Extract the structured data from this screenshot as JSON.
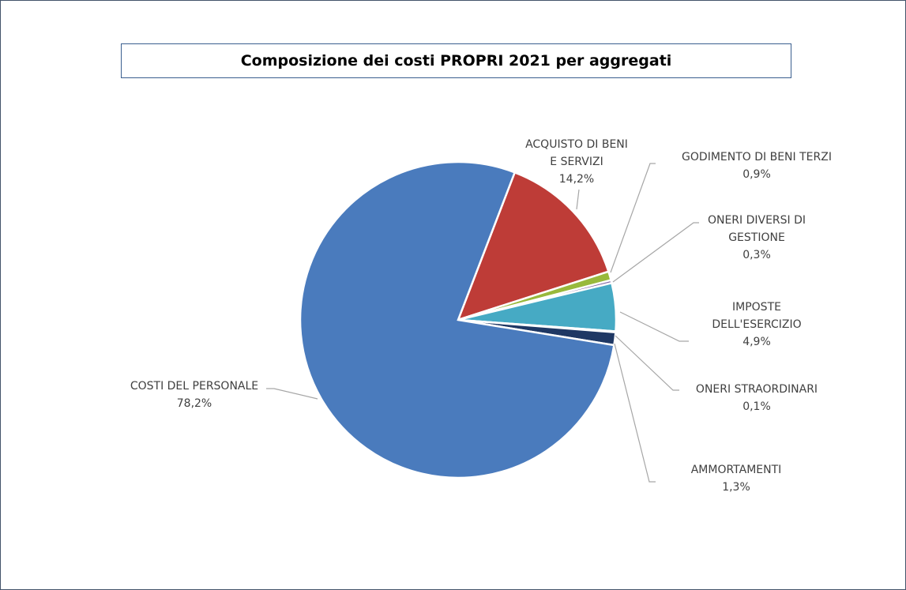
{
  "chart_data": {
    "type": "pie",
    "title": "Composizione dei costi PROPRI 2021 per aggregati",
    "categories": [
      "ACQUISTO DI BENI E SERVIZI",
      "GODIMENTO DI BENI TERZI",
      "ONERI DIVERSI DI GESTIONE",
      "IMPOSTE DELL'ESERCIZIO",
      "ONERI STRAORDINARI",
      "AMMORTAMENTI",
      "COSTI DEL PERSONALE"
    ],
    "values": [
      14.2,
      0.9,
      0.3,
      4.9,
      0.1,
      1.3,
      78.2
    ],
    "value_labels": [
      "14,2%",
      "0,9%",
      "0,3%",
      "4,9%",
      "0,1%",
      "1,3%",
      "78,2%"
    ],
    "colors": [
      "#be3c37",
      "#98b93c",
      "#7e62a1",
      "#46aac4",
      "#f59d3d",
      "#1f3864",
      "#4a7bbd"
    ]
  }
}
